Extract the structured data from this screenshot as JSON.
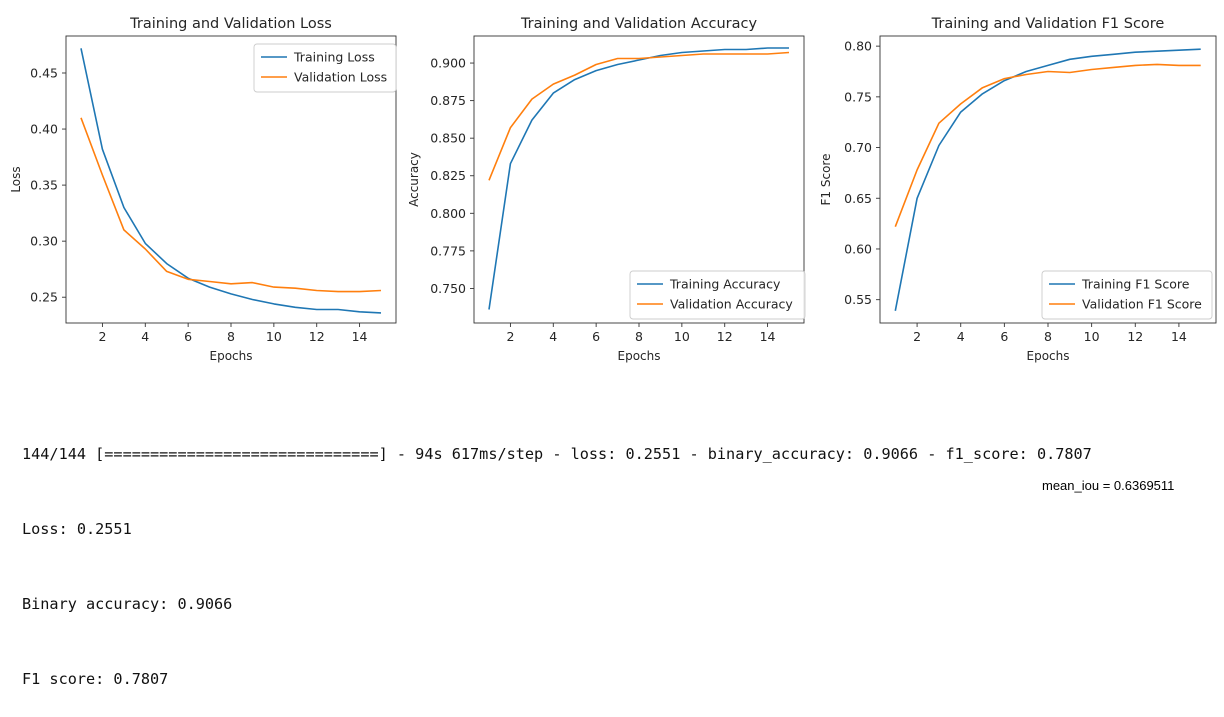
{
  "chart_data": [
    {
      "type": "line",
      "title": "Training and Validation Loss",
      "xlabel": "Epochs",
      "ylabel": "Loss",
      "x": [
        1,
        2,
        3,
        4,
        5,
        6,
        7,
        8,
        9,
        10,
        11,
        12,
        13,
        14,
        15
      ],
      "xlim": [
        0.3,
        15.7
      ],
      "ylim": [
        0.227,
        0.483
      ],
      "xticks": [
        2,
        4,
        6,
        8,
        10,
        12,
        14
      ],
      "yticks": [
        0.25,
        0.3,
        0.35,
        0.4,
        0.45
      ],
      "ytick_labels": [
        "0.25",
        "0.30",
        "0.35",
        "0.40",
        "0.45"
      ],
      "legend_position": "top-right",
      "series": [
        {
          "name": "Training Loss",
          "color": "#1f77b4",
          "values": [
            0.472,
            0.382,
            0.33,
            0.298,
            0.28,
            0.267,
            0.259,
            0.253,
            0.248,
            0.244,
            0.241,
            0.239,
            0.239,
            0.237,
            0.236
          ]
        },
        {
          "name": "Validation Loss",
          "color": "#ff7f0e",
          "values": [
            0.41,
            0.359,
            0.31,
            0.293,
            0.273,
            0.266,
            0.264,
            0.262,
            0.263,
            0.259,
            0.258,
            0.256,
            0.255,
            0.255,
            0.256
          ]
        }
      ]
    },
    {
      "type": "line",
      "title": "Training and Validation Accuracy",
      "xlabel": "Epochs",
      "ylabel": "Accuracy",
      "x": [
        1,
        2,
        3,
        4,
        5,
        6,
        7,
        8,
        9,
        10,
        11,
        12,
        13,
        14,
        15
      ],
      "xlim": [
        0.3,
        15.7
      ],
      "ylim": [
        0.727,
        0.918
      ],
      "xticks": [
        2,
        4,
        6,
        8,
        10,
        12,
        14
      ],
      "yticks": [
        0.75,
        0.775,
        0.8,
        0.825,
        0.85,
        0.875,
        0.9
      ],
      "ytick_labels": [
        "0.750",
        "0.775",
        "0.800",
        "0.825",
        "0.850",
        "0.875",
        "0.900"
      ],
      "legend_position": "bottom-right",
      "series": [
        {
          "name": "Training Accuracy",
          "color": "#1f77b4",
          "values": [
            0.736,
            0.833,
            0.862,
            0.88,
            0.889,
            0.895,
            0.899,
            0.902,
            0.905,
            0.907,
            0.908,
            0.909,
            0.909,
            0.91,
            0.91
          ]
        },
        {
          "name": "Validation Accuracy",
          "color": "#ff7f0e",
          "values": [
            0.822,
            0.857,
            0.876,
            0.886,
            0.892,
            0.899,
            0.903,
            0.903,
            0.904,
            0.905,
            0.906,
            0.906,
            0.906,
            0.906,
            0.907
          ]
        }
      ]
    },
    {
      "type": "line",
      "title": "Training and Validation F1 Score",
      "xlabel": "Epochs",
      "ylabel": "F1 Score",
      "x": [
        1,
        2,
        3,
        4,
        5,
        6,
        7,
        8,
        9,
        10,
        11,
        12,
        13,
        14,
        15
      ],
      "xlim": [
        0.3,
        15.7
      ],
      "ylim": [
        0.527,
        0.81
      ],
      "xticks": [
        2,
        4,
        6,
        8,
        10,
        12,
        14
      ],
      "yticks": [
        0.55,
        0.6,
        0.65,
        0.7,
        0.75,
        0.8
      ],
      "ytick_labels": [
        "0.55",
        "0.60",
        "0.65",
        "0.70",
        "0.75",
        "0.80"
      ],
      "legend_position": "bottom-right",
      "series": [
        {
          "name": "Training F1 Score",
          "color": "#1f77b4",
          "values": [
            0.539,
            0.65,
            0.702,
            0.735,
            0.753,
            0.766,
            0.775,
            0.781,
            0.787,
            0.79,
            0.792,
            0.794,
            0.795,
            0.796,
            0.797
          ]
        },
        {
          "name": "Validation F1 Score",
          "color": "#ff7f0e",
          "values": [
            0.622,
            0.678,
            0.724,
            0.743,
            0.759,
            0.768,
            0.772,
            0.775,
            0.774,
            0.777,
            0.779,
            0.781,
            0.782,
            0.781,
            0.781
          ]
        }
      ]
    }
  ],
  "console": {
    "lines": [
      "144/144 [==============================] - 94s 617ms/step - loss: 0.2551 - binary_accuracy: 0.9066 - f1_score: 0.7807",
      "Loss: 0.2551",
      "Binary accuracy: 0.9066",
      "F1 score: 0.7807"
    ]
  },
  "footer": {
    "metric_note": "mean_iou = 0.6369511"
  }
}
